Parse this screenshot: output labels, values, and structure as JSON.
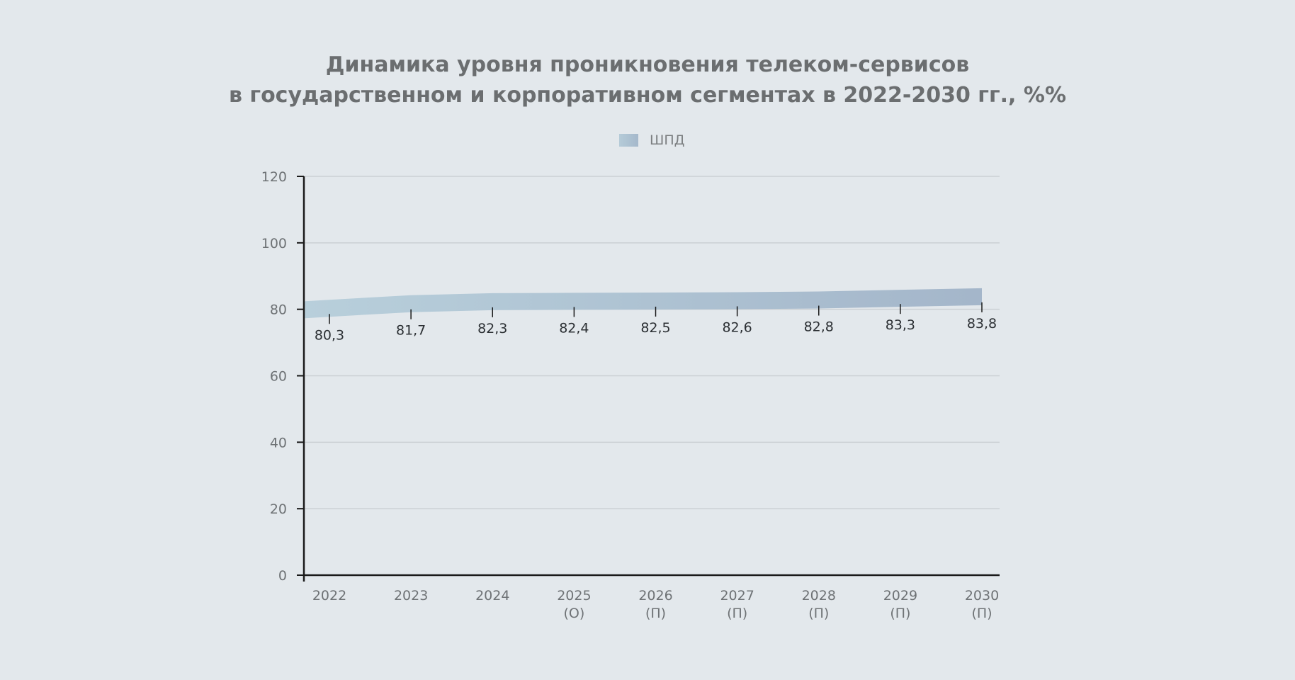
{
  "title_lines": [
    "Динамика уровня проникновения телеком-сервисов",
    "в государственном и корпоративном сегментах в 2022-2030 гг., %%"
  ],
  "chart_data": {
    "type": "area",
    "categories": [
      [
        "2022"
      ],
      [
        "2023"
      ],
      [
        "2024"
      ],
      [
        "2025",
        "(О)"
      ],
      [
        "2026",
        "(П)"
      ],
      [
        "2027",
        "(П)"
      ],
      [
        "2028",
        "(П)"
      ],
      [
        "2029",
        "(П)"
      ],
      [
        "2030",
        "(П)"
      ]
    ],
    "series": [
      {
        "name": "ШПД",
        "values": [
          80.3,
          81.7,
          82.3,
          82.4,
          82.5,
          82.6,
          82.8,
          83.3,
          83.8
        ],
        "labels": [
          "80,3",
          "81,7",
          "82,3",
          "82,4",
          "82,5",
          "82,6",
          "82,8",
          "83,3",
          "83,8"
        ]
      }
    ],
    "ylim": [
      0,
      120
    ],
    "yticks": [
      0,
      20,
      40,
      60,
      80,
      100,
      120
    ],
    "grid": true,
    "legend_position": "top-center",
    "colors": {
      "band_start": "#b8cfdb",
      "band_end": "#a4b6ca",
      "axis": "#1a1a1a",
      "grid": "#cbd0d4",
      "tick_text": "#6e7275",
      "label_text": "#2b2f33"
    }
  }
}
